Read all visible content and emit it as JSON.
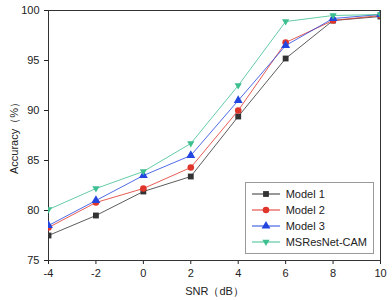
{
  "chart_data": {
    "type": "line",
    "x_label": "SNR（dB）",
    "y_label": "Accuracy（%）",
    "x": [
      -4,
      -2,
      0,
      2,
      4,
      6,
      8,
      10
    ],
    "xlim": [
      -4,
      10
    ],
    "xticks": [
      -4,
      -2,
      0,
      2,
      4,
      6,
      8,
      10
    ],
    "ylim": [
      75,
      100
    ],
    "yticks": [
      75,
      80,
      85,
      90,
      95,
      100
    ],
    "grid": false,
    "legend": "lower right",
    "series": [
      {
        "name": "Model 1",
        "color": "#333333",
        "marker": "square",
        "values": [
          77.5,
          79.5,
          81.9,
          83.4,
          89.4,
          95.2,
          99.0,
          99.4
        ]
      },
      {
        "name": "Model 2",
        "color": "#e0352b",
        "marker": "circle",
        "values": [
          78.3,
          80.8,
          82.2,
          84.3,
          90.0,
          96.8,
          99.0,
          99.5
        ]
      },
      {
        "name": "Model 3",
        "color": "#2446e0",
        "marker": "triangle",
        "values": [
          78.5,
          81.0,
          83.5,
          85.5,
          91.0,
          96.5,
          99.2,
          99.6
        ]
      },
      {
        "name": "MSResNet-CAM",
        "color": "#3dbf8f",
        "marker": "triangle-down",
        "values": [
          80.1,
          82.2,
          83.9,
          86.7,
          92.5,
          98.9,
          99.5,
          99.6
        ]
      }
    ]
  }
}
